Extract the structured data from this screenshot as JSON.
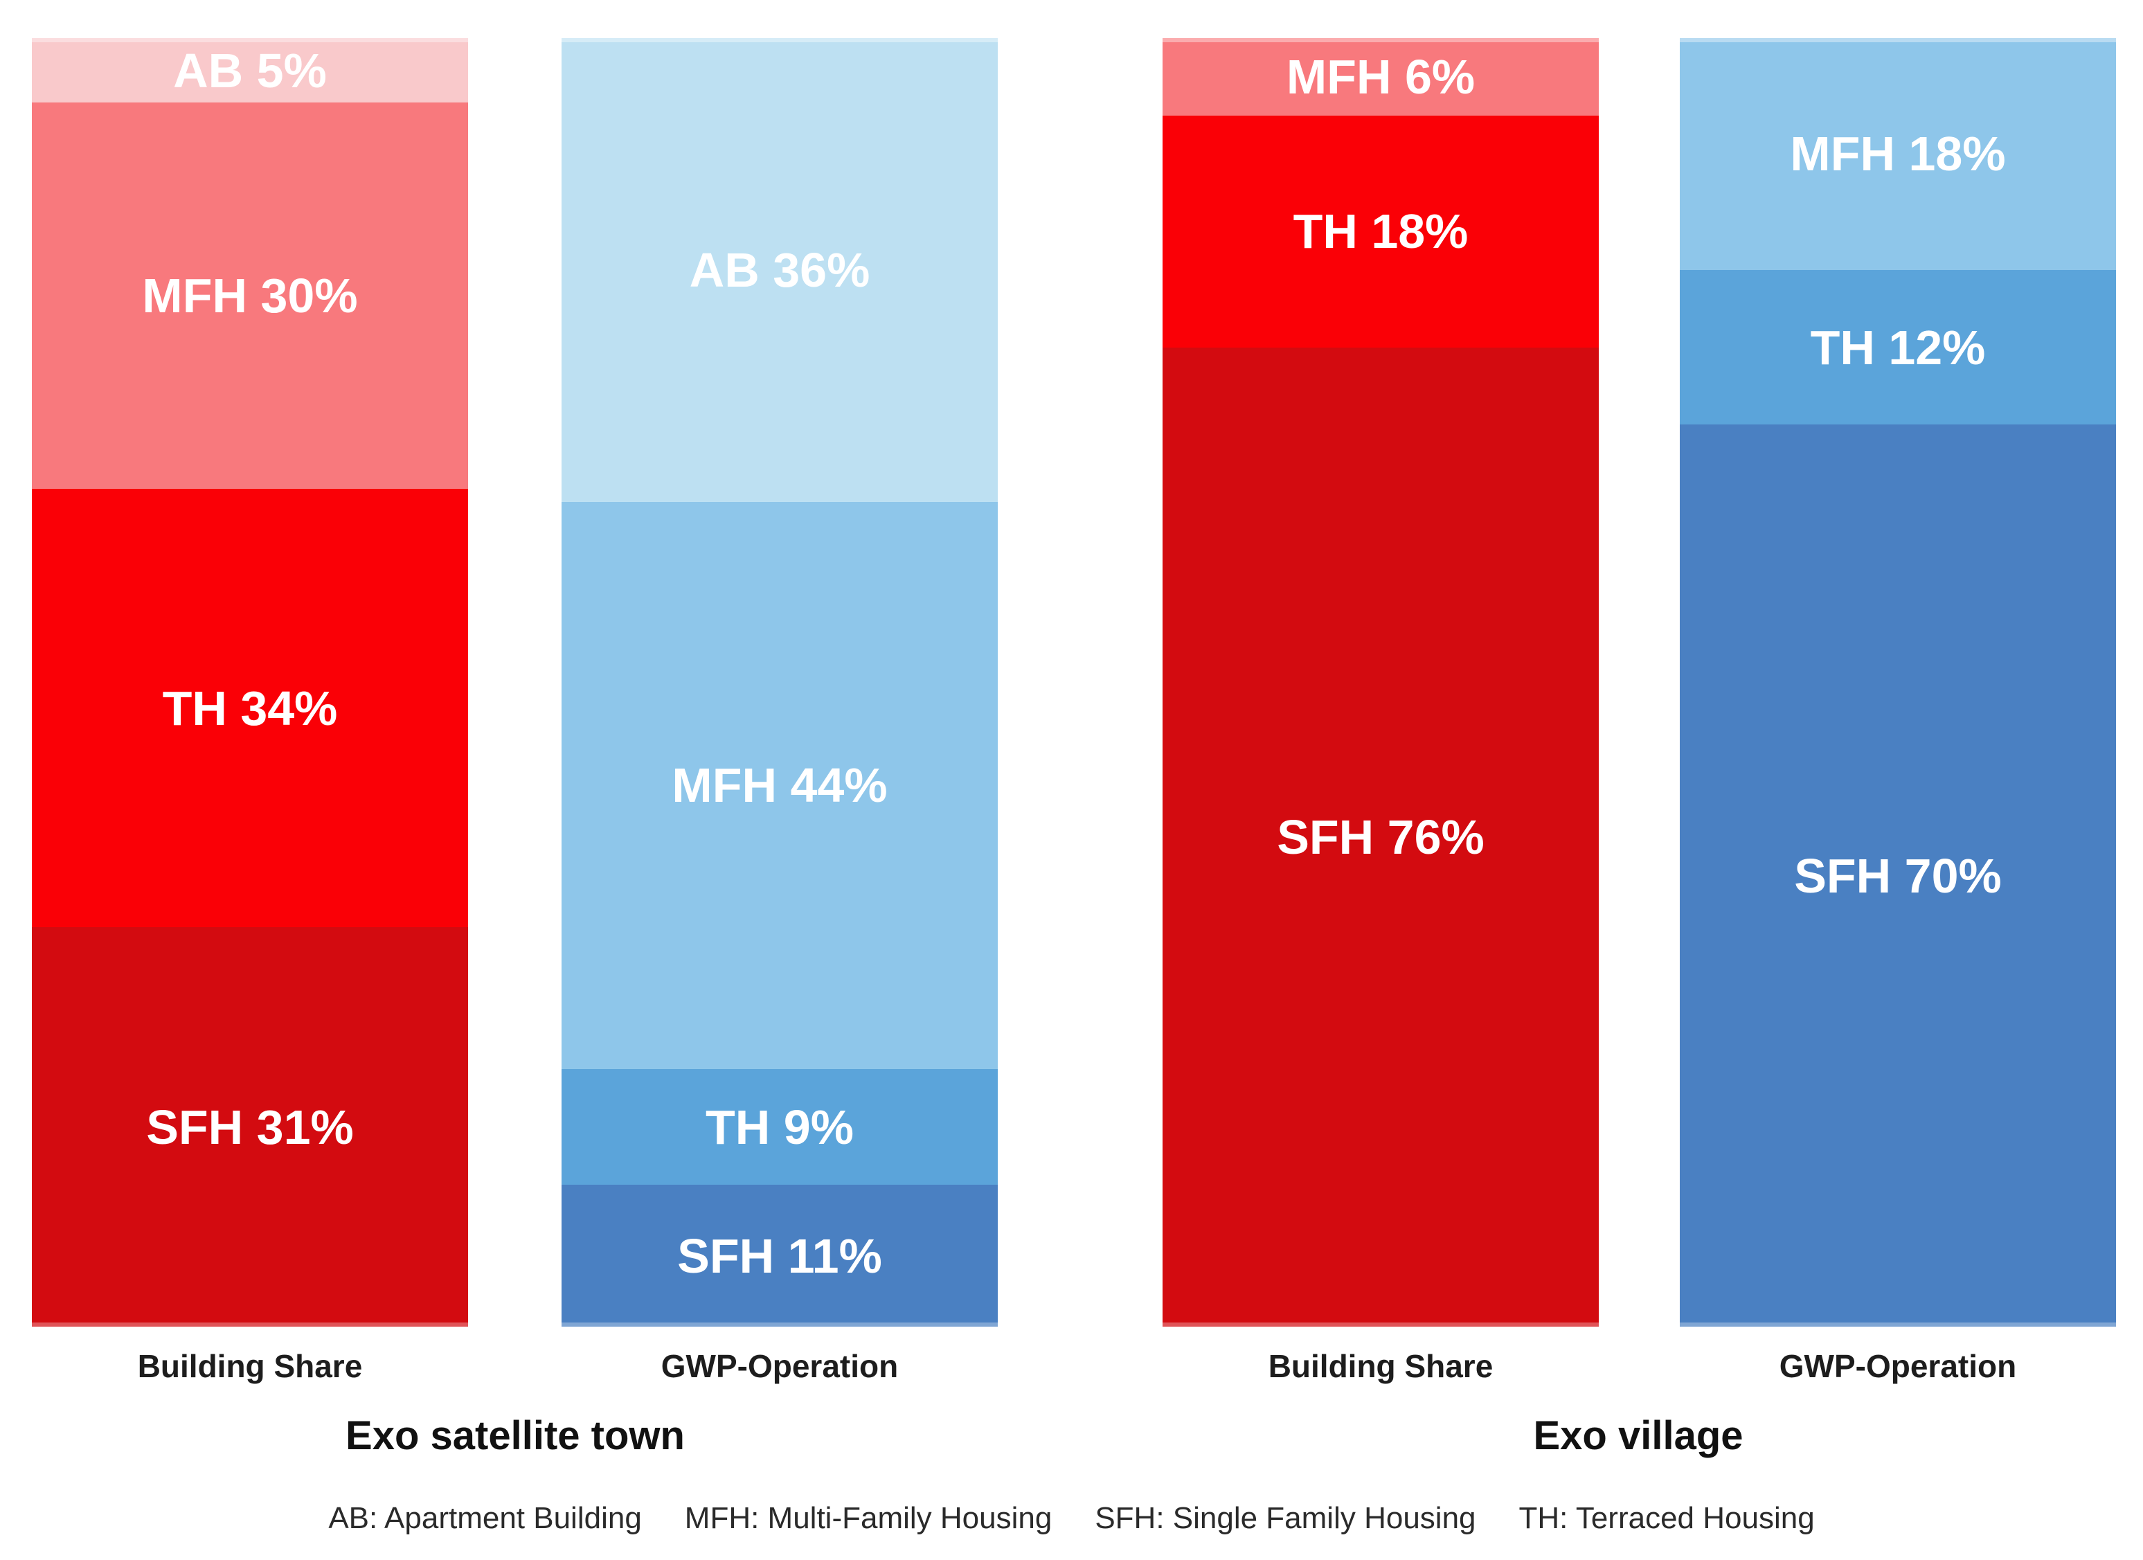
{
  "chart": {
    "legend_items": [
      {
        "abbr": "AB",
        "label": "AB: Apartment Building"
      },
      {
        "abbr": "MFH",
        "label": "MFH: Multi-Family Housing"
      },
      {
        "abbr": "SFH",
        "label": "SFH: Single Family Housing"
      },
      {
        "abbr": "TH",
        "label": "TH: Terraced Housing"
      }
    ]
  },
  "chart_data": {
    "type": "bar",
    "subtype": "100-percent-stacked-vertical",
    "unit": "%",
    "ylim": [
      0,
      100
    ],
    "grid": false,
    "axes_visible": false,
    "legend_position": "bottom",
    "label_text_color": "#ffffff",
    "palette": {
      "red": {
        "AB": "#f9c9cb",
        "MFH": "#f8797d",
        "TH": "#fa0006",
        "SFH": "#d30b10"
      },
      "blue": {
        "AB": "#bde0f2",
        "MFH": "#8ec6ea",
        "TH": "#5ba4da",
        "SFH": "#4a80c2"
      }
    },
    "groups": [
      {
        "label": "Exo satellite town",
        "bars": [
          {
            "axis_label": "Building Share",
            "palette": "red",
            "segments": [
              {
                "key": "AB",
                "value": 5,
                "label": "AB 5%"
              },
              {
                "key": "MFH",
                "value": 30,
                "label": "MFH 30%"
              },
              {
                "key": "TH",
                "value": 34,
                "label": "TH 34%"
              },
              {
                "key": "SFH",
                "value": 31,
                "label": "SFH 31%"
              }
            ]
          },
          {
            "axis_label": "GWP-Operation",
            "palette": "blue",
            "segments": [
              {
                "key": "AB",
                "value": 36,
                "label": "AB 36%"
              },
              {
                "key": "MFH",
                "value": 44,
                "label": "MFH 44%"
              },
              {
                "key": "TH",
                "value": 9,
                "label": "TH 9%"
              },
              {
                "key": "SFH",
                "value": 11,
                "label": "SFH 11%"
              }
            ]
          }
        ]
      },
      {
        "label": "Exo village",
        "bars": [
          {
            "axis_label": "Building Share",
            "palette": "red",
            "segments": [
              {
                "key": "MFH",
                "value": 6,
                "label": "MFH 6%"
              },
              {
                "key": "TH",
                "value": 18,
                "label": "TH 18%"
              },
              {
                "key": "SFH",
                "value": 76,
                "label": "SFH 76%"
              }
            ]
          },
          {
            "axis_label": "GWP-Operation",
            "palette": "blue",
            "segments": [
              {
                "key": "MFH",
                "value": 18,
                "label": "MFH 18%"
              },
              {
                "key": "TH",
                "value": 12,
                "label": "TH 12%"
              },
              {
                "key": "SFH",
                "value": 70,
                "label": "SFH 70%"
              }
            ]
          }
        ]
      }
    ]
  }
}
